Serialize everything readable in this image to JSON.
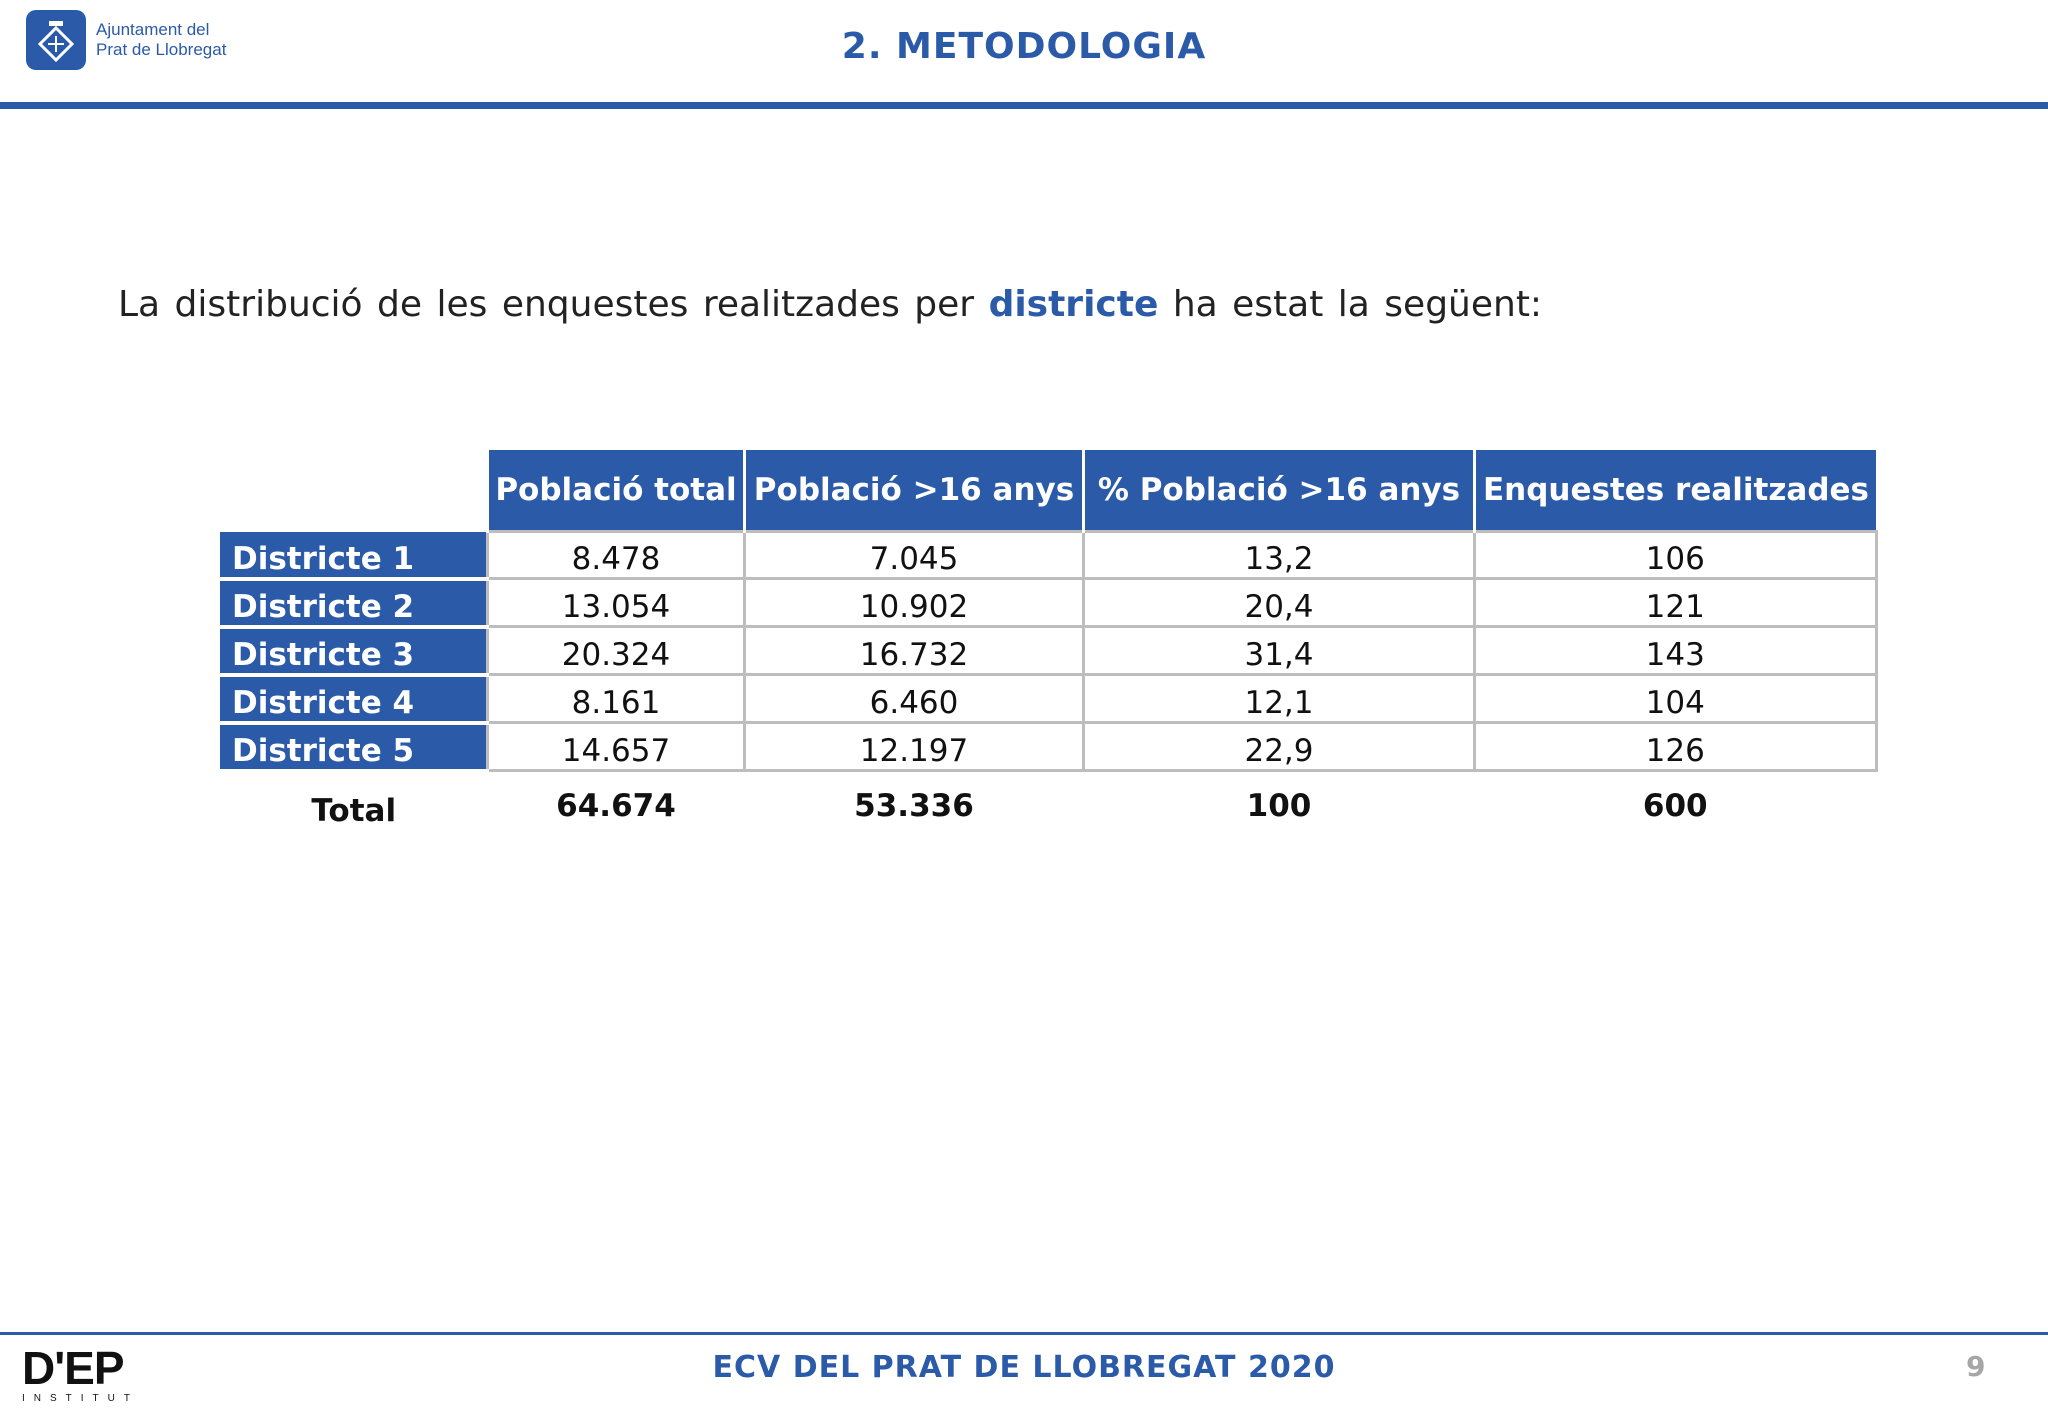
{
  "header": {
    "logo_line1": "Ajuntament del",
    "logo_line2": "Prat de Llobregat",
    "title": "2. METODOLOGIA"
  },
  "intro": {
    "text_before": "La distribució de les enquestes realitzades per ",
    "highlight": "districte",
    "text_after": " ha estat la següent:"
  },
  "table": {
    "columns": [
      "Població total",
      "Població >16 anys",
      "% Població >16 anys",
      "Enquestes realitzades"
    ],
    "rows": [
      {
        "label": "Districte 1",
        "values": [
          "8.478",
          "7.045",
          "13,2",
          "106"
        ]
      },
      {
        "label": "Districte 2",
        "values": [
          "13.054",
          "10.902",
          "20,4",
          "121"
        ]
      },
      {
        "label": "Districte 3",
        "values": [
          "20.324",
          "16.732",
          "31,4",
          "143"
        ]
      },
      {
        "label": "Districte 4",
        "values": [
          "8.161",
          "6.460",
          "12,1",
          "104"
        ]
      },
      {
        "label": "Districte 5",
        "values": [
          "14.657",
          "12.197",
          "22,9",
          "126"
        ]
      }
    ],
    "total": {
      "label": "Total",
      "values": [
        "64.674",
        "53.336",
        "100",
        "600"
      ]
    }
  },
  "footer": {
    "logo_main": "D'EP",
    "logo_sub": "INSTITUT",
    "title": "ECV DEL PRAT DE LLOBREGAT 2020",
    "page_number": "9"
  },
  "colors": {
    "brand_blue": "#2a5aa8",
    "grid_gray": "#bdbdbd",
    "logo_green": "#4c9a2a"
  }
}
